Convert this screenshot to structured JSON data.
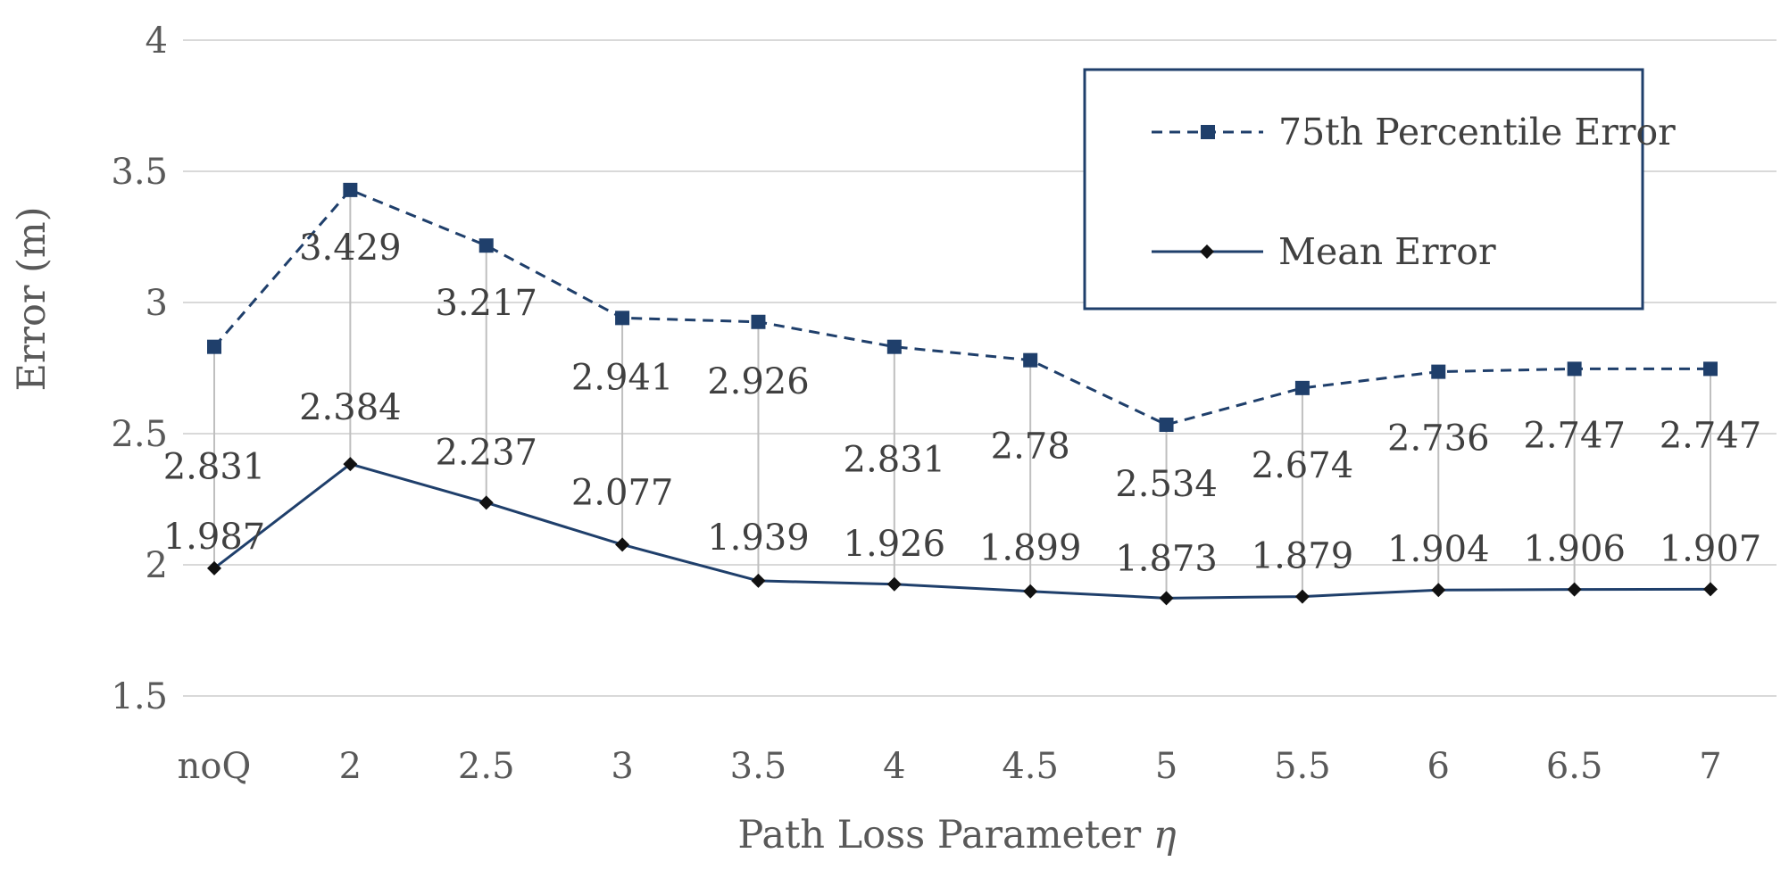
{
  "chart_data": {
    "type": "line",
    "title": "",
    "xlabel_text": "Path Loss Parameter ",
    "xlabel_symbol": "η",
    "ylabel": "Error (m)",
    "categories": [
      "noQ",
      "2",
      "2.5",
      "3",
      "3.5",
      "4",
      "4.5",
      "5",
      "5.5",
      "6",
      "6.5",
      "7"
    ],
    "ylim": [
      1.5,
      4
    ],
    "yticks": [
      "1.5",
      "2",
      "2.5",
      "3",
      "3.5",
      "4"
    ],
    "grid": true,
    "legend_position": "top-right",
    "drop_lines": true,
    "series": [
      {
        "name": "75th Percentile Error",
        "style": "dashed",
        "marker": "square",
        "values": [
          2.831,
          3.429,
          3.217,
          2.941,
          2.926,
          2.831,
          2.78,
          2.534,
          2.674,
          2.736,
          2.747,
          2.747
        ],
        "labels": [
          "2.831",
          "3.429",
          "3.217",
          "2.941",
          "2.926",
          "2.831",
          "2.78",
          "2.534",
          "2.674",
          "2.736",
          "2.747",
          "2.747"
        ]
      },
      {
        "name": "Mean Error",
        "style": "solid",
        "marker": "diamond",
        "values": [
          1.987,
          2.384,
          2.237,
          2.077,
          1.939,
          1.926,
          1.899,
          1.873,
          1.879,
          1.904,
          1.906,
          1.907
        ],
        "labels": [
          "1.987",
          "2.384",
          "2.237",
          "2.077",
          "1.939",
          "1.926",
          "1.899",
          "1.873",
          "1.879",
          "1.904",
          "1.906",
          "1.907"
        ]
      }
    ]
  },
  "colors": {
    "series": "#1f3f6b",
    "legend_border": "#1f3f6b",
    "grid": "#d9d9d9",
    "dropline": "#bfbfbf",
    "text": "#595959"
  }
}
